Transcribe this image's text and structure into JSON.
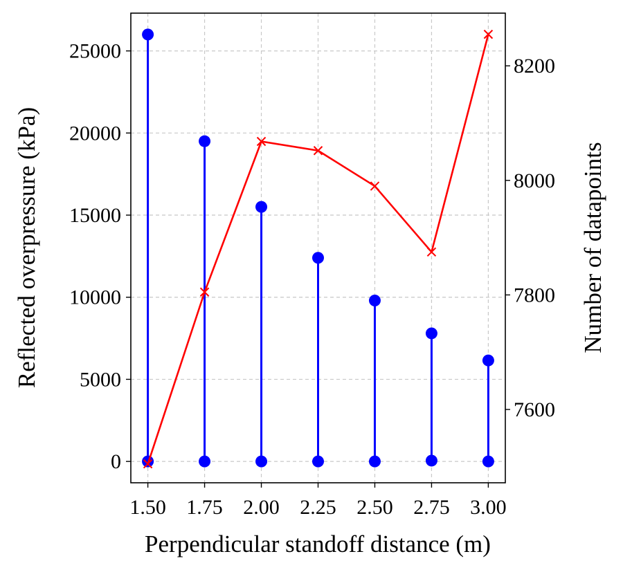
{
  "chart_data": {
    "type": "line",
    "xlabel": "Perpendicular standoff distance (m)",
    "ylabel": "Reflected overpressure (kPa)",
    "y2label": "Number of datapoints",
    "x": [
      1.5,
      1.75,
      2.0,
      2.25,
      2.5,
      2.75,
      3.0
    ],
    "x_tick_labels": [
      "1.50",
      "1.75",
      "2.00",
      "2.25",
      "2.50",
      "2.75",
      "3.00"
    ],
    "y_ticks": [
      0,
      5000,
      10000,
      15000,
      20000,
      25000
    ],
    "y2_ticks": [
      7600,
      7800,
      8000,
      8200
    ],
    "xlim": [
      1.425,
      3.075
    ],
    "ylim": [
      -1300,
      27300
    ],
    "y2lim": [
      7472,
      8292
    ],
    "grid": true,
    "series": [
      {
        "axis": "left",
        "style": "range-stem",
        "color": "#0000ff",
        "marker": "circle",
        "min": [
          0,
          0,
          0,
          0,
          0,
          50,
          0
        ],
        "max": [
          26000,
          19500,
          15500,
          12400,
          9800,
          7800,
          6150
        ]
      },
      {
        "axis": "right",
        "style": "line",
        "color": "#ff0000",
        "marker": "x",
        "values": [
          7505,
          7805,
          8068,
          8052,
          7990,
          7875,
          8255
        ]
      }
    ]
  }
}
